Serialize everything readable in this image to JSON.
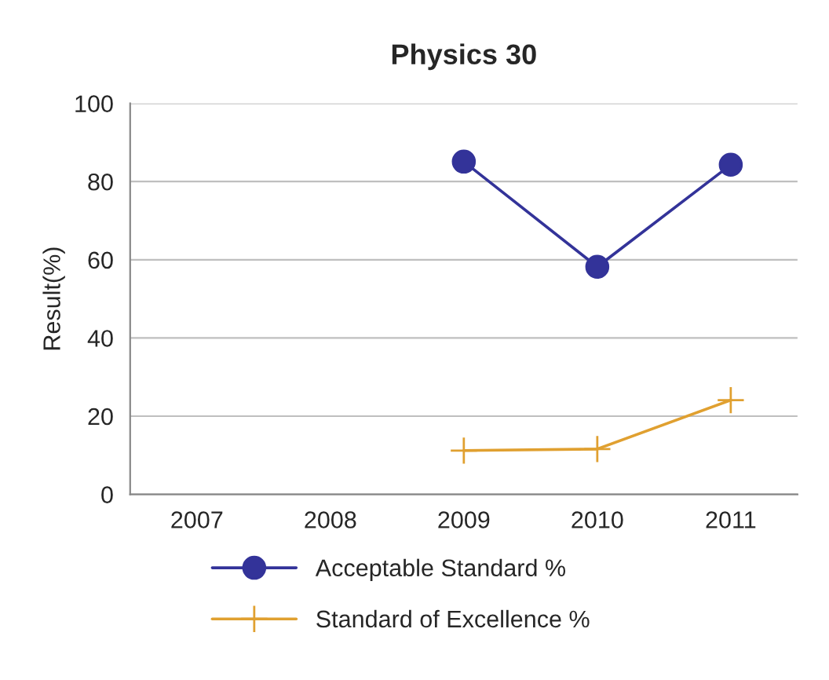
{
  "chart_data": {
    "type": "line",
    "title": "Physics 30",
    "ylabel": "Result(%)",
    "categories": [
      "2007",
      "2008",
      "2009",
      "2010",
      "2011"
    ],
    "series": [
      {
        "name": "Acceptable Standard %",
        "color": "#333399",
        "marker": "circle",
        "values": [
          null,
          null,
          85.1,
          58.2,
          84.3
        ]
      },
      {
        "name": "Standard of Excellence %",
        "color": "#e0a030",
        "marker": "cross",
        "values": [
          null,
          null,
          11.2,
          11.6,
          24.1
        ]
      }
    ],
    "ylim": [
      0,
      100
    ],
    "yticks": [
      0,
      20,
      40,
      60,
      80,
      100
    ],
    "grid": "y",
    "legend": "bottom",
    "line_style": "solid"
  }
}
